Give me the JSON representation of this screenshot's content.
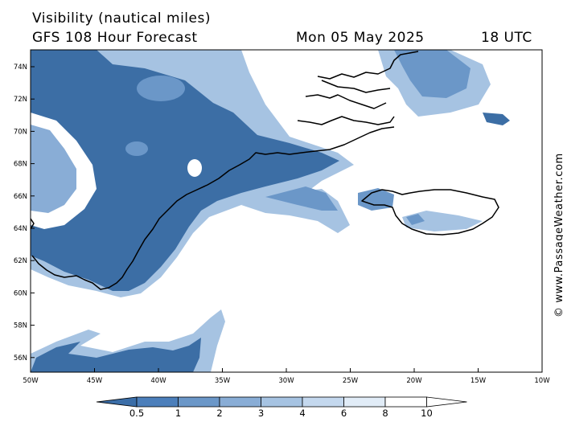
{
  "header": {
    "title": "Visibility (nautical miles)",
    "subtitle": "GFS 108 Hour Forecast",
    "date": "Mon 05 May 2025",
    "time": "18 UTC"
  },
  "axes": {
    "lat_labels": [
      "74N",
      "72N",
      "70N",
      "68N",
      "66N",
      "64N",
      "62N",
      "60N",
      "58N",
      "56N"
    ],
    "lon_labels": [
      "50W",
      "45W",
      "40W",
      "35W",
      "30W",
      "25W",
      "20W",
      "15W",
      "10W"
    ]
  },
  "colorbar": {
    "labels": [
      "0.5",
      "1",
      "2",
      "3",
      "4",
      "6",
      "8",
      "10"
    ],
    "colors": [
      "#3b6ea8",
      "#4c7fbb",
      "#6b97c8",
      "#89add6",
      "#a6c3e2",
      "#c4d8ee",
      "#e1ecf7",
      "#ffffff"
    ]
  },
  "colors": {
    "fog_dark": "#3c6ea5",
    "fog_mid": "#6b97c8",
    "fog_light": "#a6c3e2",
    "coastline": "#000000"
  },
  "watermark": "© www.PassageWeather.com"
}
